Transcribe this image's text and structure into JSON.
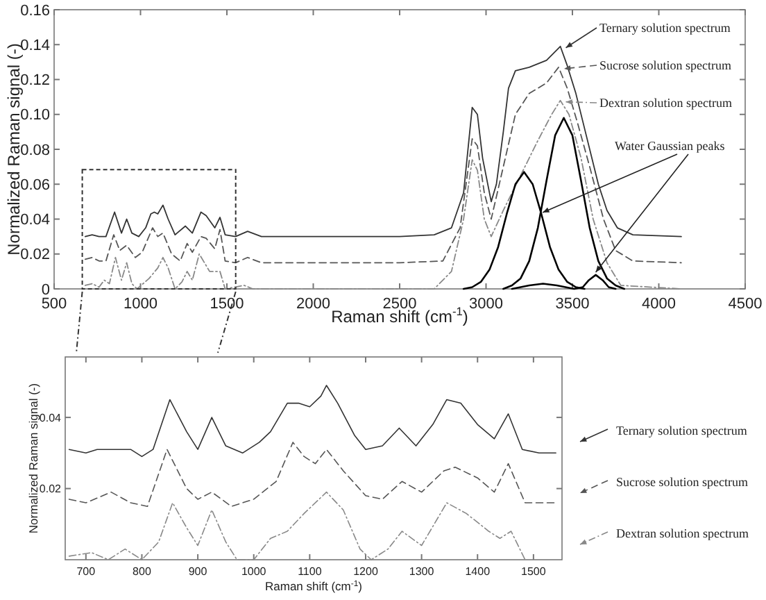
{
  "chart_data": [
    {
      "type": "line",
      "xlabel": "Raman shift (cm$^{-1}$)",
      "ylabel": "Normalized Raman signal (-)",
      "xlim": [
        500,
        4500
      ],
      "xticks": [
        500,
        1000,
        1500,
        2000,
        2500,
        3000,
        3500,
        4000,
        4500
      ],
      "ylim": [
        0,
        0.16
      ],
      "yticks": [
        0,
        0.02,
        0.04,
        0.06,
        0.08,
        {
          "value": 0.1,
          "label": "0.10"
        },
        0.12,
        0.14,
        0.16
      ],
      "annotations": [
        {
          "text": "Water Gaussian peaks",
          "x": 3320,
          "y": 0.043
        }
      ],
      "legend": "top right",
      "series": [
        {
          "name": "Ternary solution spectrum",
          "color": "#333333",
          "line_style": "solid",
          "x": [
            680,
            720,
            760,
            800,
            850,
            890,
            920,
            950,
            990,
            1030,
            1060,
            1080,
            1100,
            1130,
            1160,
            1200,
            1260,
            1300,
            1350,
            1380,
            1430,
            1460,
            1490,
            1550,
            1620,
            1700,
            2000,
            2500,
            2700,
            2800,
            2870,
            2920,
            2950,
            2980,
            3030,
            3060,
            3100,
            3130,
            3170,
            3250,
            3350,
            3400,
            3430,
            3470,
            3520,
            3580,
            3650,
            3700,
            3760,
            3850,
            4130
          ],
          "values": [
            0.03,
            0.031,
            0.03,
            0.03,
            0.044,
            0.032,
            0.04,
            0.032,
            0.03,
            0.035,
            0.043,
            0.044,
            0.043,
            0.048,
            0.04,
            0.031,
            0.036,
            0.032,
            0.044,
            0.042,
            0.035,
            0.041,
            0.031,
            0.03,
            0.033,
            0.03,
            0.03,
            0.03,
            0.031,
            0.035,
            0.055,
            0.104,
            0.1,
            0.075,
            0.05,
            0.06,
            0.09,
            0.115,
            0.125,
            0.127,
            0.131,
            0.136,
            0.139,
            0.128,
            0.112,
            0.088,
            0.06,
            0.045,
            0.035,
            0.031,
            0.03
          ]
        },
        {
          "name": "Sucrose solution spectrum",
          "color": "#555555",
          "line_style": "dashed",
          "x": [
            680,
            720,
            760,
            800,
            845,
            880,
            920,
            970,
            1010,
            1070,
            1100,
            1130,
            1180,
            1230,
            1270,
            1300,
            1350,
            1380,
            1430,
            1460,
            1490,
            1550,
            1620,
            1700,
            2500,
            2750,
            2850,
            2920,
            2950,
            2990,
            3030,
            3100,
            3170,
            3250,
            3350,
            3420,
            3470,
            3530,
            3600,
            3680,
            3750,
            3850,
            4130
          ],
          "values": [
            0.017,
            0.018,
            0.016,
            0.016,
            0.031,
            0.022,
            0.025,
            0.018,
            0.021,
            0.035,
            0.03,
            0.032,
            0.02,
            0.016,
            0.026,
            0.021,
            0.03,
            0.029,
            0.023,
            0.034,
            0.016,
            0.015,
            0.018,
            0.015,
            0.015,
            0.016,
            0.035,
            0.086,
            0.082,
            0.055,
            0.04,
            0.07,
            0.1,
            0.112,
            0.118,
            0.127,
            0.115,
            0.095,
            0.07,
            0.04,
            0.022,
            0.016,
            0.015
          ]
        },
        {
          "name": "Dextran solution spectrum",
          "color": "#888888",
          "line_style": "dotted",
          "x": [
            680,
            720,
            760,
            790,
            820,
            855,
            890,
            920,
            950,
            980,
            1050,
            1100,
            1130,
            1160,
            1200,
            1240,
            1270,
            1300,
            1340,
            1400,
            1460,
            1490,
            1600,
            1650,
            2700,
            2800,
            2870,
            2920,
            2950,
            2990,
            3030,
            3100,
            3200,
            3300,
            3380,
            3430,
            3480,
            3550,
            3620,
            3700,
            3780,
            4130
          ],
          "values": [
            0.002,
            0.003,
            0.001,
            0.005,
            0.003,
            0.018,
            0.005,
            0.015,
            0.003,
            0.0,
            0.006,
            0.012,
            0.018,
            0.012,
            0.0,
            0.004,
            0.01,
            0.005,
            0.02,
            0.01,
            0.01,
            0.0,
            0.002,
            0.0,
            0.0,
            0.01,
            0.04,
            0.074,
            0.068,
            0.04,
            0.03,
            0.045,
            0.065,
            0.085,
            0.1,
            0.108,
            0.1,
            0.075,
            0.04,
            0.015,
            0.002,
            0.0
          ]
        },
        {
          "color": "#000000",
          "line_style": "solid",
          "x": [
            2870,
            2920,
            2970,
            3020,
            3070,
            3120,
            3170,
            3220,
            3270,
            3320,
            3370,
            3420,
            3470,
            3520,
            3570
          ],
          "values": [
            0.0,
            0.001,
            0.004,
            0.011,
            0.024,
            0.043,
            0.06,
            0.067,
            0.06,
            0.043,
            0.024,
            0.011,
            0.004,
            0.001,
            0.0
          ]
        },
        {
          "color": "#000000",
          "line_style": "solid",
          "x": [
            3100,
            3150,
            3200,
            3250,
            3300,
            3350,
            3400,
            3450,
            3500,
            3550,
            3600,
            3650,
            3700,
            3750,
            3800
          ],
          "values": [
            0.0,
            0.002,
            0.006,
            0.016,
            0.035,
            0.062,
            0.088,
            0.098,
            0.088,
            0.062,
            0.035,
            0.016,
            0.006,
            0.002,
            0.0
          ]
        },
        {
          "color": "#000000",
          "line_style": "solid",
          "x": [
            3150,
            3250,
            3330,
            3410,
            3510,
            3560,
            3595,
            3635,
            3675,
            3710,
            3750
          ],
          "values": [
            0.0,
            0.002,
            0.003,
            0.002,
            0.0,
            0.001,
            0.005,
            0.008,
            0.005,
            0.001,
            0.0
          ]
        }
      ]
    },
    {
      "type": "line",
      "xlabel": "Raman shift (cm$^{-1}$)",
      "ylabel": "Normalized Raman signal (-)",
      "xlim": [
        663,
        1551
      ],
      "xticks": [
        700,
        800,
        900,
        1000,
        1100,
        1200,
        1300,
        1400,
        1500
      ],
      "ylim": [
        0,
        0.057
      ],
      "yticks": [
        0.02,
        0.04
      ],
      "legend": "right",
      "series": [
        {
          "name": "Ternary solution spectrum",
          "color": "#333333",
          "line_style": "solid",
          "x": [
            670,
            700,
            720,
            750,
            780,
            800,
            820,
            850,
            880,
            900,
            925,
            950,
            980,
            1010,
            1030,
            1060,
            1080,
            1100,
            1120,
            1130,
            1150,
            1180,
            1200,
            1230,
            1260,
            1290,
            1320,
            1345,
            1370,
            1400,
            1430,
            1455,
            1480,
            1510,
            1540
          ],
          "values": [
            0.031,
            0.03,
            0.031,
            0.031,
            0.031,
            0.029,
            0.031,
            0.045,
            0.036,
            0.031,
            0.04,
            0.032,
            0.03,
            0.033,
            0.036,
            0.044,
            0.044,
            0.043,
            0.046,
            0.049,
            0.044,
            0.035,
            0.031,
            0.032,
            0.037,
            0.032,
            0.038,
            0.045,
            0.044,
            0.038,
            0.034,
            0.041,
            0.031,
            0.03,
            0.03
          ]
        },
        {
          "name": "Sucrose solution spectrum",
          "color": "#555555",
          "line_style": "dashed",
          "x": [
            670,
            700,
            745,
            780,
            810,
            845,
            880,
            900,
            925,
            960,
            1000,
            1040,
            1070,
            1090,
            1110,
            1130,
            1160,
            1200,
            1230,
            1265,
            1300,
            1340,
            1360,
            1400,
            1430,
            1455,
            1485,
            1540
          ],
          "values": [
            0.017,
            0.016,
            0.019,
            0.016,
            0.015,
            0.031,
            0.02,
            0.017,
            0.019,
            0.015,
            0.017,
            0.022,
            0.033,
            0.029,
            0.027,
            0.031,
            0.025,
            0.018,
            0.017,
            0.022,
            0.019,
            0.025,
            0.026,
            0.023,
            0.019,
            0.027,
            0.016,
            0.016
          ]
        },
        {
          "name": "Dextran solution spectrum",
          "color": "#888888",
          "line_style": "dotted",
          "x": [
            670,
            710,
            740,
            770,
            800,
            830,
            855,
            880,
            900,
            925,
            950,
            970,
            1000,
            1030,
            1060,
            1090,
            1130,
            1160,
            1190,
            1210,
            1240,
            1265,
            1300,
            1345,
            1380,
            1420,
            1440,
            1460,
            1485
          ],
          "values": [
            0.001,
            0.002,
            0.0,
            0.003,
            0.0,
            0.005,
            0.016,
            0.009,
            0.004,
            0.014,
            0.005,
            0.0,
            0.0,
            0.006,
            0.008,
            0.013,
            0.019,
            0.014,
            0.003,
            0.0,
            0.003,
            0.008,
            0.004,
            0.016,
            0.013,
            0.008,
            0.006,
            0.008,
            0.0
          ]
        }
      ]
    }
  ]
}
